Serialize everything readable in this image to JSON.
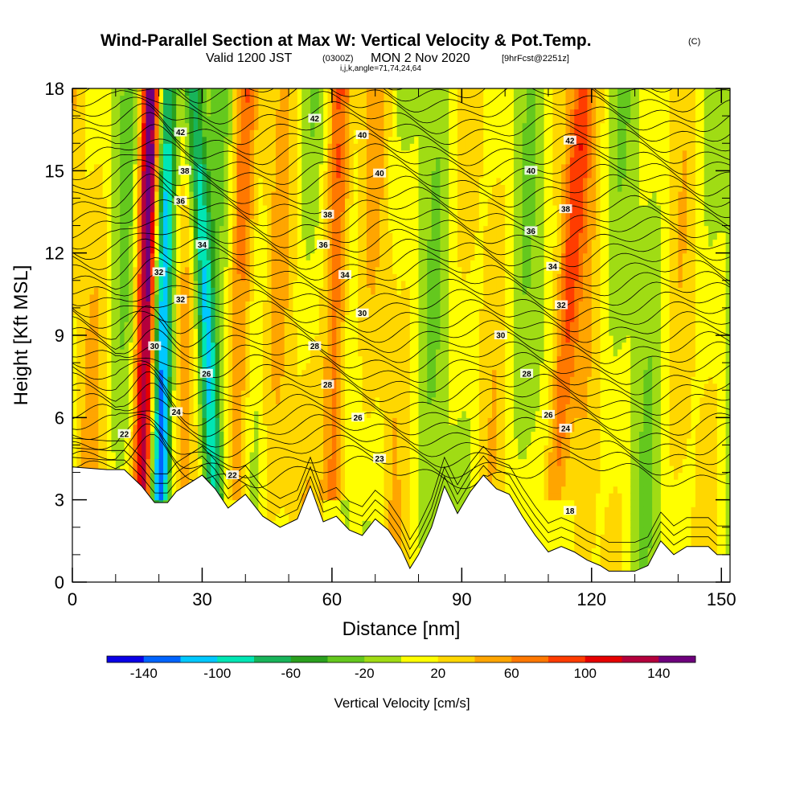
{
  "title": {
    "main": "Wind-Parallel Section at Max W: Vertical Velocity & Pot.Temp.",
    "copyright": "(C)",
    "valid_prefix": "Valid 1200 JST",
    "utc": "(0300Z)",
    "valid_date": "MON 2 Nov 2020",
    "forecast": "[9hrFcst@2251z]",
    "ijk": "i,j,k,angle=71,74,24,64"
  },
  "chart_data": {
    "type": "heatmap",
    "xlabel": "Distance [nm]",
    "ylabel": "Height [Kft MSL]",
    "xlim": [
      0,
      152
    ],
    "ylim": [
      0,
      18
    ],
    "xticks": [
      0,
      30,
      60,
      90,
      120,
      150
    ],
    "yticks": [
      0,
      3,
      6,
      9,
      12,
      15,
      18
    ],
    "x_tick_labels": [
      "0",
      "30",
      "60",
      "90",
      "120",
      "150"
    ],
    "y_tick_labels": [
      "0",
      "3",
      "6",
      "9",
      "12",
      "15",
      "18"
    ],
    "grid": false,
    "colorbar": {
      "title": "Vertical Velocity [cm/s]",
      "position": "bottom",
      "tick_labels": [
        "-140",
        "-100",
        "-60",
        "-20",
        "20",
        "60",
        "100",
        "140"
      ],
      "levels": [
        -160,
        -140,
        -120,
        -100,
        -80,
        -60,
        -40,
        -20,
        0,
        20,
        40,
        60,
        80,
        100,
        120,
        140,
        160
      ],
      "colors": [
        "#0a00e6",
        "#0064ff",
        "#00c8ff",
        "#00e6b4",
        "#18b45a",
        "#2aa01e",
        "#64c81e",
        "#a0dc14",
        "#ffff00",
        "#ffd700",
        "#ffa500",
        "#ff7800",
        "#ff3c00",
        "#e60000",
        "#b4003c",
        "#6e007d"
      ]
    },
    "terrain_height_kft": {
      "x": [
        0,
        8,
        12,
        16,
        19,
        22,
        24,
        27,
        30,
        33,
        36,
        40,
        44,
        48,
        52,
        55,
        58,
        61,
        64,
        67,
        70,
        73,
        76,
        78,
        80,
        83,
        86,
        89,
        92,
        95,
        98,
        101,
        104,
        107,
        110,
        113,
        116,
        119,
        122,
        124,
        127,
        130,
        133,
        136,
        139,
        142,
        145,
        147,
        149,
        152
      ],
      "y": [
        4.2,
        4.1,
        4.1,
        3.5,
        2.9,
        2.9,
        3.3,
        3.6,
        3.9,
        3.4,
        2.7,
        3.2,
        2.4,
        2.0,
        2.3,
        3.5,
        2.2,
        2.4,
        1.9,
        1.7,
        2.3,
        1.9,
        1.2,
        0.5,
        1.0,
        2.0,
        3.5,
        2.5,
        3.3,
        3.9,
        3.4,
        3.2,
        2.4,
        1.7,
        1.1,
        1.3,
        1.1,
        0.8,
        0.6,
        0.4,
        0.4,
        0.4,
        0.6,
        1.5,
        1.0,
        1.3,
        1.3,
        1.3,
        1.0,
        1.0
      ]
    },
    "wind_parallel_w_maxima_cm_s": [
      {
        "x_at_top": 18,
        "x_at_bottom": 16,
        "peak": 150
      },
      {
        "x_at_top": 22,
        "x_at_bottom": 20,
        "peak": -130
      },
      {
        "x_at_top": 28,
        "x_at_bottom": 34,
        "peak": -110
      },
      {
        "x_at_top": 40,
        "x_at_bottom": 38,
        "peak": 70
      },
      {
        "x_at_top": 62,
        "x_at_bottom": 60,
        "peak": 90
      },
      {
        "x_at_top": 118,
        "x_at_bottom": 110,
        "peak": 80
      }
    ],
    "potential_temperature_labels": [
      "18",
      "22",
      "22",
      "23",
      "24",
      "24",
      "26",
      "26",
      "26",
      "28",
      "28",
      "28",
      "30",
      "30",
      "30",
      "32",
      "32",
      "32",
      "34",
      "34",
      "34",
      "36",
      "36",
      "36",
      "38",
      "38",
      "38",
      "40",
      "40",
      "40",
      "42",
      "42",
      "42"
    ]
  }
}
